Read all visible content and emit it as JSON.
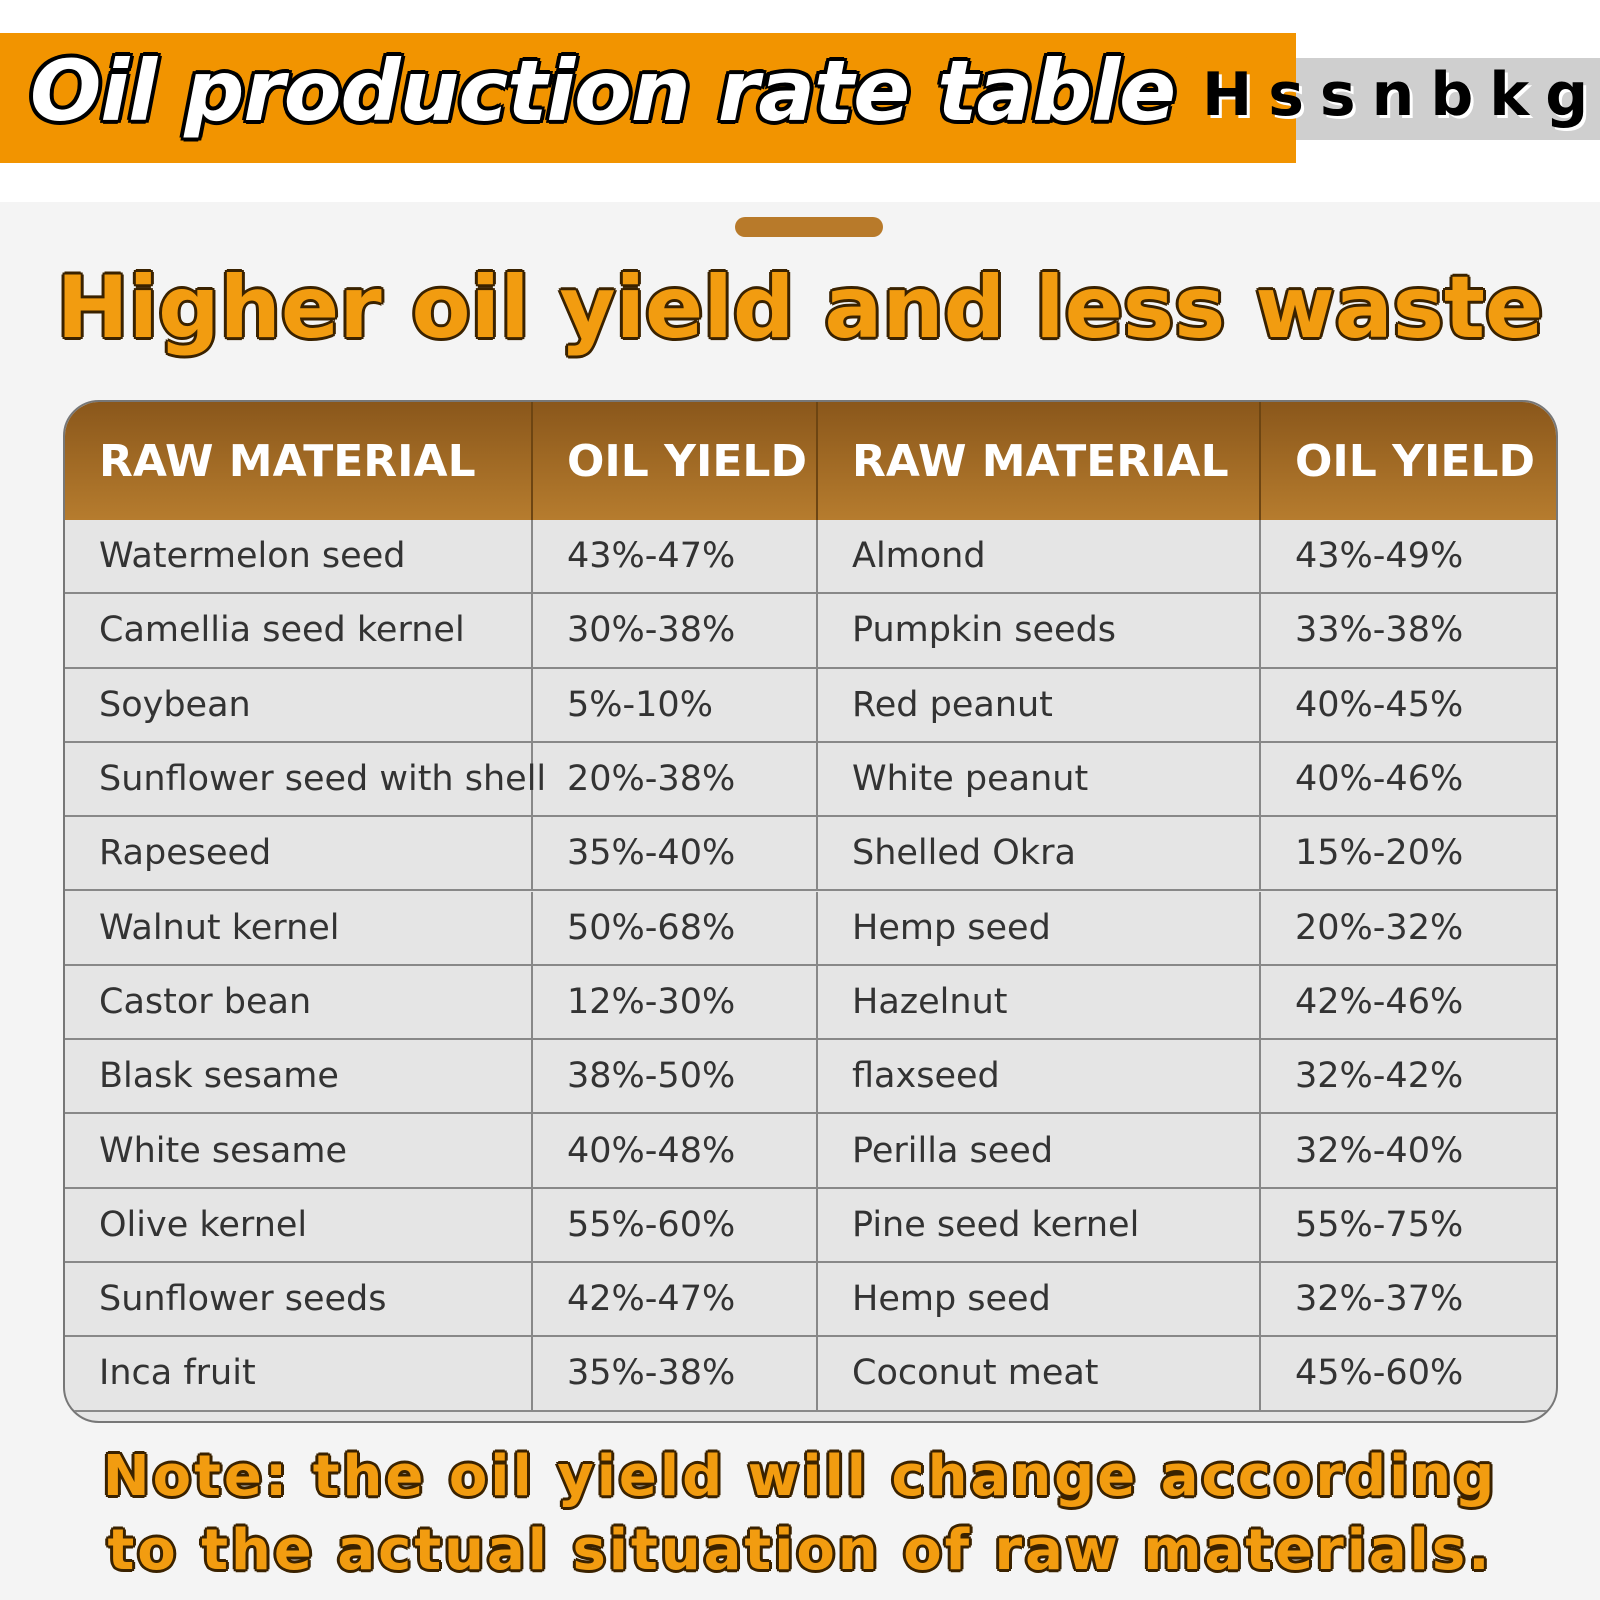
{
  "header": {
    "title": "Oil production rate table",
    "brand": "Hssnbkg"
  },
  "heading": "Higher oil yield and less waste",
  "table": {
    "columns": [
      "RAW MATERIAL",
      "OIL YIELD",
      "RAW MATERIAL",
      "OIL YIELD"
    ],
    "rows": [
      [
        "Watermelon seed",
        "43%-47%",
        "Almond",
        "43%-49%"
      ],
      [
        "Camellia seed kernel",
        "30%-38%",
        "Pumpkin seeds",
        "33%-38%"
      ],
      [
        "Soybean",
        "5%-10%",
        "Red peanut",
        "40%-45%"
      ],
      [
        "Sunflower seed with shell",
        "20%-38%",
        "White peanut",
        "40%-46%"
      ],
      [
        "Rapeseed",
        "35%-40%",
        "Shelled Okra",
        "15%-20%"
      ],
      [
        "Walnut kernel",
        "50%-68%",
        "Hemp seed",
        "20%-32%"
      ],
      [
        "Castor bean",
        "12%-30%",
        "Hazelnut",
        "42%-46%"
      ],
      [
        "Blask sesame",
        "38%-50%",
        "flaxseed",
        "32%-42%"
      ],
      [
        "White sesame",
        "40%-48%",
        "Perilla seed",
        "32%-40%"
      ],
      [
        "Olive kernel",
        "55%-60%",
        "Pine seed kernel",
        "55%-75%"
      ],
      [
        "Sunflower seeds",
        "42%-47%",
        "Hemp seed",
        "32%-37%"
      ],
      [
        "Inca fruit",
        "35%-38%",
        "Coconut meat",
        "45%-60%"
      ]
    ]
  },
  "note": "Note: the oil yield will change according to the actual situation of raw materials."
}
